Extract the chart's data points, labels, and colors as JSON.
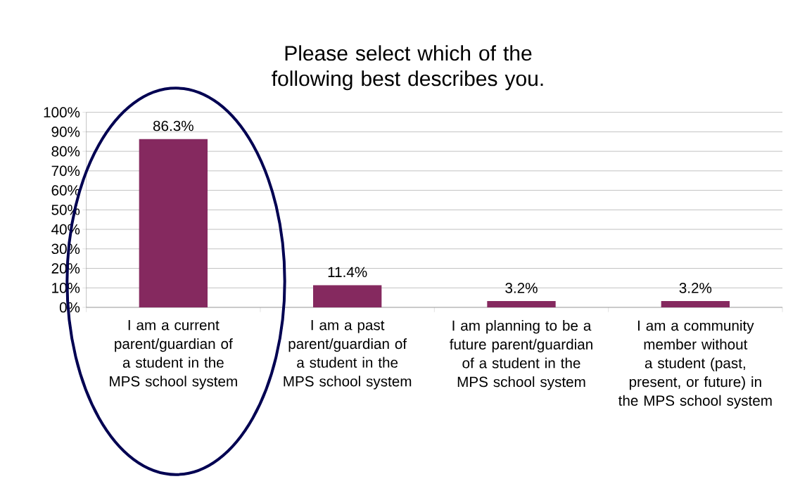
{
  "chart_data": {
    "type": "bar",
    "title": "Please select which of the following best describes you.",
    "categories": [
      "I am a current parent/guardian of a student in the MPS school system",
      "I am a past parent/guardian of a student in the MPS school system",
      "I am planning to be a future parent/guardian of a student in the MPS school system",
      "I am a community member without a student (past, present, or future) in the MPS school system"
    ],
    "values": [
      86.3,
      11.4,
      3.2,
      3.2
    ],
    "value_labels": [
      "86.3%",
      "11.4%",
      "3.2%",
      "3.2%"
    ],
    "color": "#85295f",
    "ylim": [
      0,
      100
    ],
    "yticks": [
      {
        "value": 0,
        "label": "0%"
      },
      {
        "value": 10,
        "label": "10%"
      },
      {
        "value": 20,
        "label": "20%"
      },
      {
        "value": 30,
        "label": "30%"
      },
      {
        "value": 40,
        "label": "40%"
      },
      {
        "value": 50,
        "label": "50%"
      },
      {
        "value": 60,
        "label": "60%"
      },
      {
        "value": 70,
        "label": "70%"
      },
      {
        "value": 80,
        "label": "80%"
      },
      {
        "value": 90,
        "label": "90%"
      },
      {
        "value": 100,
        "label": "100%"
      }
    ],
    "grid": "y"
  }
}
